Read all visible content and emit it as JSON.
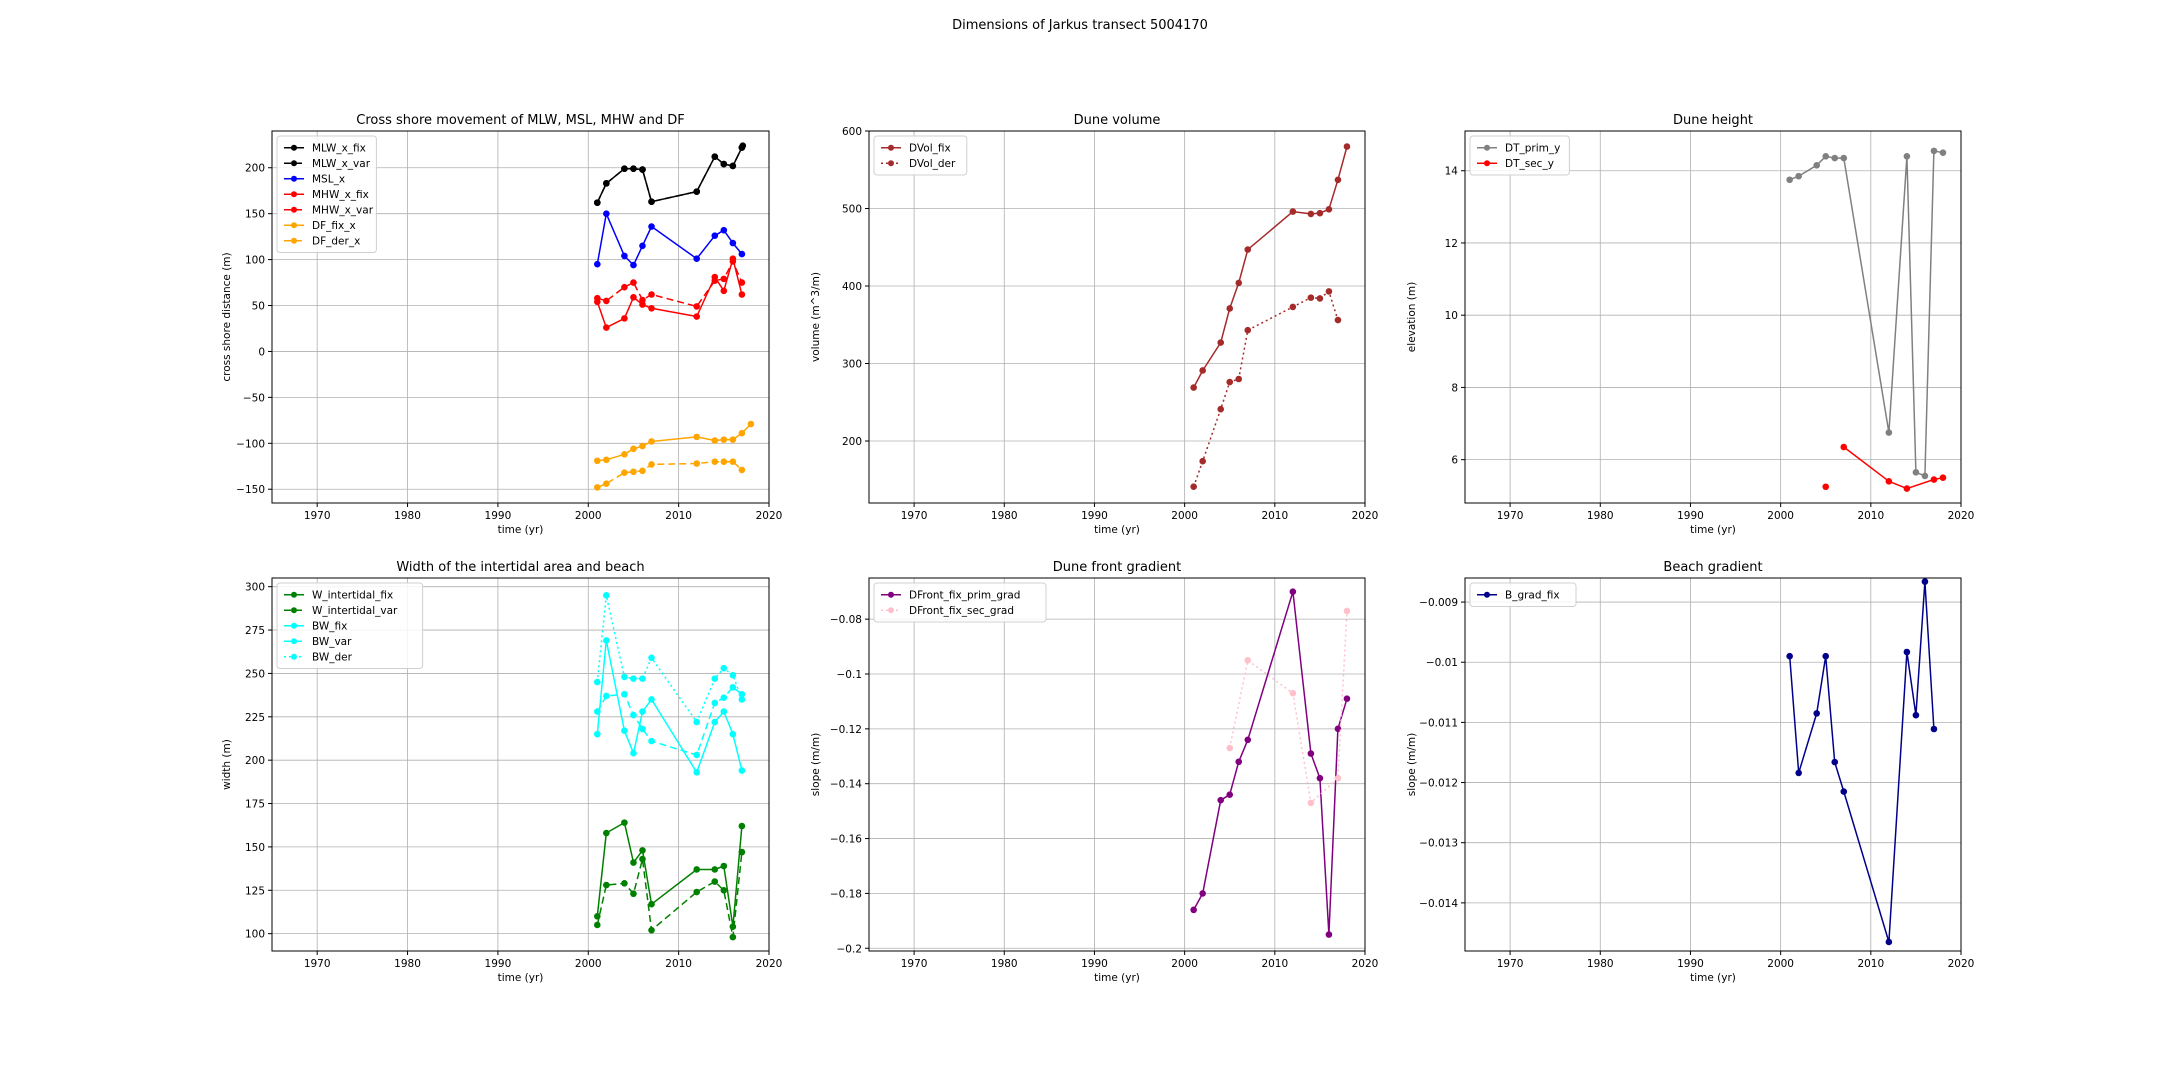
{
  "figure_title": "Dimensions of Jarkus transect 5004170",
  "chart_data": [
    {
      "type": "line",
      "title": "Cross shore movement of MLW, MSL, MHW and DF",
      "xlabel": "time (yr)",
      "ylabel": "cross shore distance (m)",
      "xlim": [
        1965,
        2020
      ],
      "ylim": [
        -165,
        240
      ],
      "xticks": [
        1970,
        1980,
        1990,
        2000,
        2010,
        2020
      ],
      "yticks": [
        -150,
        -100,
        -50,
        0,
        50,
        100,
        150,
        200
      ],
      "grid": true,
      "legend_position": "top-left",
      "series": [
        {
          "name": "MLW_x_fix",
          "color": "#000000",
          "dash": "solid",
          "marker": true,
          "x": [
            2001,
            2002,
            2004,
            2005,
            2006,
            2007,
            2012,
            2014,
            2015,
            2016,
            2017,
            2017.1
          ],
          "y": [
            162,
            183,
            199,
            199,
            198,
            163,
            174,
            212,
            204,
            202,
            222,
            224
          ]
        },
        {
          "name": "MLW_x_var",
          "color": "#000000",
          "dash": "dashed",
          "marker": true,
          "x": [
            2001,
            2002,
            2004,
            2005,
            2006,
            2007,
            2012,
            2014,
            2015,
            2016,
            2017
          ],
          "y": [
            162,
            183,
            199,
            199,
            198,
            163,
            174,
            212,
            204,
            202,
            222
          ]
        },
        {
          "name": "MSL_x",
          "color": "#0000ff",
          "dash": "solid",
          "marker": true,
          "x": [
            2001,
            2002,
            2004,
            2005,
            2006,
            2007,
            2012,
            2014,
            2015,
            2016,
            2017
          ],
          "y": [
            95,
            150,
            104,
            94,
            115,
            136,
            101,
            126,
            132,
            118,
            106
          ]
        },
        {
          "name": "MHW_x_fix",
          "color": "#ff0000",
          "dash": "solid",
          "marker": true,
          "x": [
            2001,
            2002,
            2004,
            2005,
            2006,
            2007,
            2012,
            2014,
            2015,
            2016,
            2017
          ],
          "y": [
            54,
            26,
            36,
            59,
            51,
            47,
            38,
            81,
            66,
            101,
            62
          ]
        },
        {
          "name": "MHW_x_var",
          "color": "#ff0000",
          "dash": "dashed",
          "marker": true,
          "x": [
            2001,
            2002,
            2004,
            2005,
            2006,
            2007,
            2012,
            2014,
            2015,
            2016,
            2017
          ],
          "y": [
            58,
            55,
            70,
            75,
            56,
            62,
            49,
            77,
            79,
            98,
            75
          ]
        },
        {
          "name": "DF_fix_x",
          "color": "#ffa500",
          "dash": "solid",
          "marker": true,
          "x": [
            2001,
            2002,
            2004,
            2005,
            2006,
            2007,
            2012,
            2014,
            2015,
            2016,
            2017,
            2018
          ],
          "y": [
            -119,
            -118,
            -112,
            -106,
            -103,
            -98,
            -93,
            -97,
            -96,
            -96,
            -89,
            -79
          ]
        },
        {
          "name": "DF_der_x",
          "color": "#ffa500",
          "dash": "dashed",
          "marker": true,
          "x": [
            2001,
            2002,
            2004,
            2005,
            2006,
            2007,
            2012,
            2014,
            2015,
            2016,
            2017
          ],
          "y": [
            -148,
            -144,
            -132,
            -131,
            -130,
            -123,
            -122,
            -120,
            -120,
            -120,
            -129
          ]
        }
      ]
    },
    {
      "type": "line",
      "title": "Dune volume",
      "xlabel": "time (yr)",
      "ylabel": "volume (m^3/m)",
      "xlim": [
        1965,
        2020
      ],
      "ylim": [
        120,
        600
      ],
      "xticks": [
        1970,
        1980,
        1990,
        2000,
        2010,
        2020
      ],
      "yticks": [
        200,
        300,
        400,
        500,
        600
      ],
      "grid": true,
      "legend_position": "top-left",
      "series": [
        {
          "name": "DVol_fix",
          "color": "#a52a2a",
          "dash": "solid",
          "marker": true,
          "x": [
            2001,
            2002,
            2004,
            2005,
            2006,
            2007,
            2012,
            2014,
            2015,
            2016,
            2017,
            2018
          ],
          "y": [
            269,
            291,
            327,
            371,
            404,
            447,
            496,
            493,
            494,
            499,
            537,
            580
          ]
        },
        {
          "name": "DVol_der",
          "color": "#a52a2a",
          "dash": "dotted",
          "marker": true,
          "x": [
            2001,
            2002,
            2004,
            2005,
            2006,
            2007,
            2012,
            2014,
            2015,
            2016,
            2017
          ],
          "y": [
            141,
            174,
            241,
            276,
            280,
            343,
            373,
            385,
            384,
            393,
            356
          ]
        }
      ]
    },
    {
      "type": "line",
      "title": "Dune height",
      "xlabel": "time (yr)",
      "ylabel": "elevation (m)",
      "xlim": [
        1965,
        2020
      ],
      "ylim": [
        4.8,
        15.1
      ],
      "xticks": [
        1970,
        1980,
        1990,
        2000,
        2010,
        2020
      ],
      "yticks": [
        6,
        8,
        10,
        12,
        14
      ],
      "grid": true,
      "legend_position": "top-left",
      "series": [
        {
          "name": "DT_prim_y",
          "color": "#808080",
          "dash": "solid",
          "marker": true,
          "x": [
            2001,
            2002,
            2004,
            2005,
            2006,
            2007,
            2012,
            2014,
            2015,
            2016,
            2017,
            2018
          ],
          "y": [
            13.75,
            13.85,
            14.15,
            14.4,
            14.35,
            14.35,
            6.75,
            14.4,
            5.65,
            5.55,
            14.55,
            14.5
          ]
        },
        {
          "name": "DT_sec_y",
          "color": "#ff0000",
          "dash": "solid",
          "marker": true,
          "x": [
            2005,
            2007,
            2012,
            2014,
            2017,
            2018
          ],
          "y": [
            5.25,
            6.35,
            5.4,
            5.2,
            5.45,
            5.5
          ],
          "breaks_after": [
            0
          ]
        }
      ]
    },
    {
      "type": "line",
      "title": "Width of the intertidal area and beach",
      "xlabel": "time (yr)",
      "ylabel": "width (m)",
      "xlim": [
        1965,
        2020
      ],
      "ylim": [
        90,
        305
      ],
      "xticks": [
        1970,
        1980,
        1990,
        2000,
        2010,
        2020
      ],
      "yticks": [
        100,
        125,
        150,
        175,
        200,
        225,
        250,
        275,
        300
      ],
      "grid": true,
      "legend_position": "top-left",
      "series": [
        {
          "name": "W_intertidal_fix",
          "color": "#008000",
          "dash": "solid",
          "marker": true,
          "x": [
            2001,
            2002,
            2004,
            2005,
            2006,
            2007,
            2012,
            2014,
            2015,
            2016,
            2017
          ],
          "y": [
            110,
            158,
            164,
            141,
            148,
            117,
            137,
            137,
            139,
            104,
            162
          ]
        },
        {
          "name": "W_intertidal_var",
          "color": "#008000",
          "dash": "dashed",
          "marker": true,
          "x": [
            2001,
            2002,
            2004,
            2005,
            2006,
            2007,
            2012,
            2014,
            2015,
            2016,
            2017
          ],
          "y": [
            105,
            128,
            129,
            123,
            143,
            102,
            124,
            130,
            125,
            98,
            147
          ]
        },
        {
          "name": "BW_fix",
          "color": "#00ffff",
          "dash": "solid",
          "marker": true,
          "x": [
            2001,
            2002,
            2004,
            2005,
            2006,
            2007,
            2012,
            2014,
            2015,
            2016,
            2017
          ],
          "y": [
            215,
            269,
            217,
            204,
            228,
            235,
            193,
            222,
            228,
            215,
            194
          ]
        },
        {
          "name": "BW_var",
          "color": "#00ffff",
          "dash": "dashed",
          "marker": true,
          "x": [
            2001,
            2002,
            2004,
            2005,
            2006,
            2007,
            2012,
            2014,
            2015,
            2016,
            2017
          ],
          "y": [
            228,
            237,
            238,
            226,
            218,
            211,
            203,
            233,
            236,
            242,
            238
          ]
        },
        {
          "name": "BW_der",
          "color": "#00ffff",
          "dash": "dotted",
          "marker": true,
          "x": [
            2001,
            2002,
            2004,
            2005,
            2006,
            2007,
            2012,
            2014,
            2015,
            2016,
            2017
          ],
          "y": [
            245,
            295,
            248,
            247,
            247,
            259,
            222,
            247,
            253,
            249,
            235
          ]
        }
      ]
    },
    {
      "type": "line",
      "title": "Dune front gradient",
      "xlabel": "time (yr)",
      "ylabel": "slope (m/m)",
      "xlim": [
        1965,
        2020
      ],
      "ylim": [
        -0.201,
        -0.065
      ],
      "xticks": [
        1970,
        1980,
        1990,
        2000,
        2010,
        2020
      ],
      "yticks": [
        -0.2,
        -0.18,
        -0.16,
        -0.14,
        -0.12,
        -0.1,
        -0.08
      ],
      "grid": true,
      "legend_position": "top-left",
      "series": [
        {
          "name": "DFront_fix_prim_grad",
          "color": "#800080",
          "dash": "solid",
          "marker": true,
          "x": [
            2001,
            2002,
            2004,
            2005,
            2006,
            2007,
            2012,
            2014,
            2015,
            2016,
            2017,
            2018
          ],
          "y": [
            -0.186,
            -0.18,
            -0.146,
            -0.144,
            -0.132,
            -0.124,
            -0.07,
            -0.129,
            -0.138,
            -0.195,
            -0.12,
            -0.109
          ]
        },
        {
          "name": "DFront_fix_sec_grad",
          "color": "#ffc0cb",
          "dash": "dotted",
          "marker": true,
          "x": [
            2005,
            2007,
            2012,
            2014,
            2017,
            2018
          ],
          "y": [
            -0.127,
            -0.095,
            -0.107,
            -0.147,
            -0.138,
            -0.077
          ]
        }
      ]
    },
    {
      "type": "line",
      "title": "Beach gradient",
      "xlabel": "time (yr)",
      "ylabel": "slope (m/m)",
      "xlim": [
        1965,
        2020
      ],
      "ylim": [
        -0.0148,
        -0.0086
      ],
      "xticks": [
        1970,
        1980,
        1990,
        2000,
        2010,
        2020
      ],
      "yticks": [
        -0.014,
        -0.013,
        -0.012,
        -0.011,
        -0.01,
        -0.009
      ],
      "grid": true,
      "legend_position": "top-left",
      "series": [
        {
          "name": "B_grad_fix",
          "color": "#00008b",
          "dash": "solid",
          "marker": true,
          "x": [
            2001,
            2002,
            2004,
            2005,
            2006,
            2007,
            2012,
            2014,
            2015,
            2016,
            2017
          ],
          "y": [
            -0.0099,
            -0.01184,
            -0.01085,
            -0.0099,
            -0.01166,
            -0.01215,
            -0.01465,
            -0.00983,
            -0.01088,
            -0.00866,
            -0.01111
          ]
        }
      ]
    }
  ]
}
